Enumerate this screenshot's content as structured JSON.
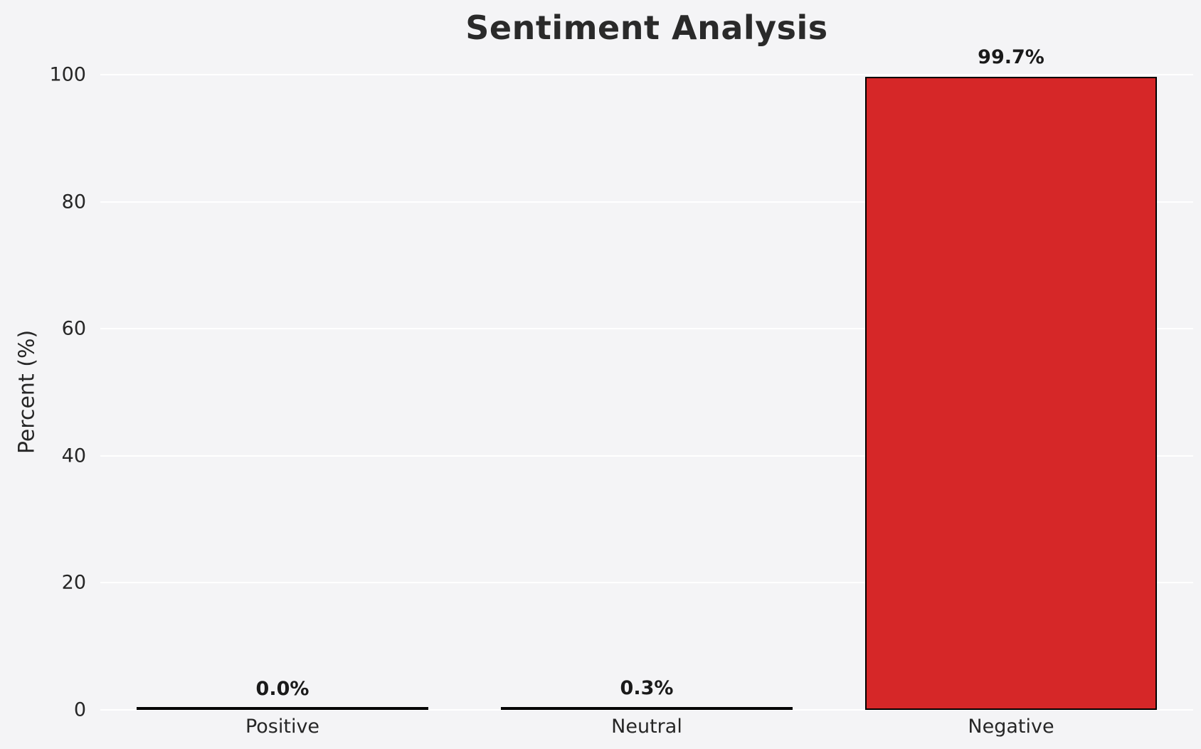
{
  "chart_data": {
    "type": "bar",
    "title": "Sentiment Analysis",
    "categories": [
      "Positive",
      "Neutral",
      "Negative"
    ],
    "values": [
      0.0,
      0.3,
      99.7
    ],
    "value_labels": [
      "0.0%",
      "0.3%",
      "99.7%"
    ],
    "xlabel": "",
    "ylabel": "Percent (%)",
    "ylim": [
      0,
      100
    ],
    "yticks": [
      0,
      20,
      40,
      60,
      80,
      100
    ],
    "grid": true,
    "legend_position": "none",
    "bar_color": "#d62728",
    "bar_edge_color": "#000000",
    "background_color": "#f4f4f6",
    "grid_color": "#ffffff",
    "text_color": "#262626"
  }
}
